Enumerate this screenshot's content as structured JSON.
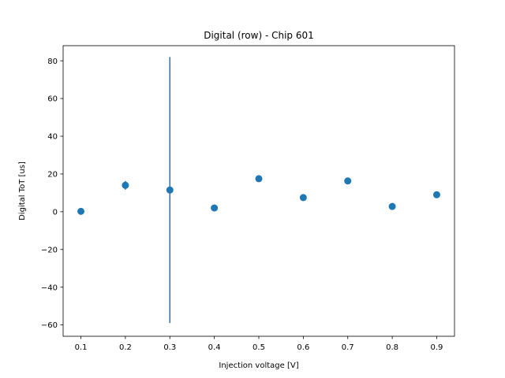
{
  "chart_data": {
    "type": "scatter",
    "title": "Digital (row) - Chip 601",
    "xlabel": "Injection voltage [V]",
    "ylabel": "Digital ToT [us]",
    "xlim": [
      0.06,
      0.94
    ],
    "ylim": [
      -66,
      88
    ],
    "xticks": [
      0.1,
      0.2,
      0.3,
      0.4,
      0.5,
      0.6,
      0.7,
      0.8,
      0.9
    ],
    "xtick_labels": [
      "0.1",
      "0.2",
      "0.3",
      "0.4",
      "0.5",
      "0.6",
      "0.7",
      "0.8",
      "0.9"
    ],
    "yticks": [
      -60,
      -40,
      -20,
      0,
      20,
      40,
      60,
      80
    ],
    "ytick_labels": [
      "−60",
      "−40",
      "−20",
      "0",
      "20",
      "40",
      "60",
      "80"
    ],
    "grid": false,
    "marker_color": "#1f77b4",
    "series": [
      {
        "x": [
          0.1,
          0.2,
          0.3,
          0.4,
          0.5,
          0.6,
          0.7,
          0.8,
          0.9
        ],
        "y": [
          0.2,
          14.0,
          11.5,
          2.0,
          17.5,
          7.5,
          16.3,
          2.8,
          9.0
        ],
        "yerr": [
          0,
          2.3,
          70.5,
          1.2,
          0,
          0,
          0,
          0,
          0
        ]
      }
    ]
  }
}
